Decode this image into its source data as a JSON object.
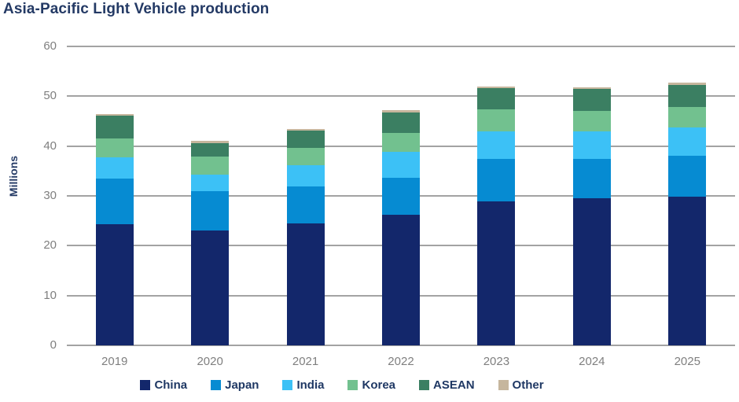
{
  "title": "Asia-Pacific Light Vehicle production",
  "colors": {
    "title_text": "#243a65",
    "axis_labels": "#7f7f7f",
    "gridlines": "#a3a3a3",
    "legend_text": "#1f3864",
    "background": "#ffffff"
  },
  "chart_data": {
    "type": "bar",
    "stacked": true,
    "title": "Asia-Pacific Light Vehicle production",
    "ylabel": "Millions",
    "xlabel": "",
    "ylim": [
      0,
      60
    ],
    "yticks": [
      0,
      10,
      20,
      30,
      40,
      50,
      60
    ],
    "grid": true,
    "legend_position": "bottom",
    "categories": [
      "2019",
      "2020",
      "2021",
      "2022",
      "2023",
      "2024",
      "2025"
    ],
    "series": [
      {
        "name": "China",
        "color": "#13276b",
        "values": [
          24.3,
          23.0,
          24.4,
          26.2,
          28.9,
          29.5,
          29.8
        ]
      },
      {
        "name": "Japan",
        "color": "#068bd2",
        "values": [
          9.1,
          7.9,
          7.5,
          7.4,
          8.6,
          7.9,
          8.2
        ]
      },
      {
        "name": "India",
        "color": "#3cc1f6",
        "values": [
          4.4,
          3.4,
          4.2,
          5.2,
          5.5,
          5.6,
          5.7
        ]
      },
      {
        "name": "Korea",
        "color": "#72c18f",
        "values": [
          3.8,
          3.6,
          3.6,
          3.9,
          4.3,
          4.0,
          4.1
        ]
      },
      {
        "name": "ASEAN",
        "color": "#3b7f62",
        "values": [
          4.5,
          2.7,
          3.4,
          4.1,
          4.3,
          4.4,
          4.5
        ]
      },
      {
        "name": "Other",
        "color": "#c6b69d",
        "values": [
          0.3,
          0.4,
          0.4,
          0.4,
          0.4,
          0.4,
          0.4
        ]
      }
    ]
  }
}
